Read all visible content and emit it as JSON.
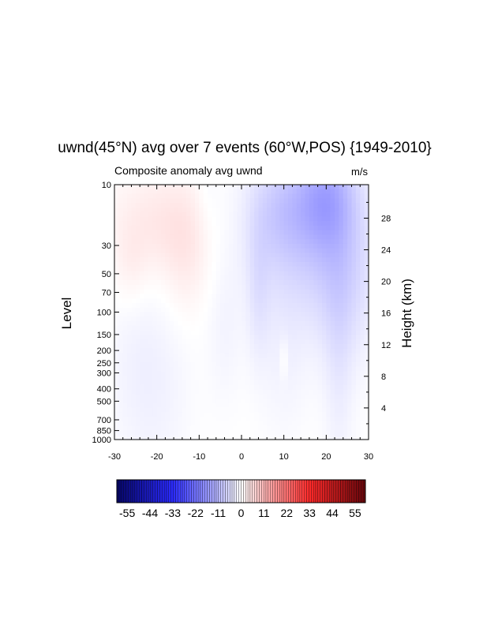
{
  "chart_data": {
    "type": "heatmap",
    "title": "uwnd(45°N) avg over 7 events (60°W,POS) {1949-2010}",
    "subtitle": "Composite anomaly avg uwnd",
    "units": "m/s",
    "ylabel_left": "Level",
    "ylabel_right": "Height (km)",
    "xlim": [
      -30,
      30
    ],
    "x_ticks": [
      -30,
      -20,
      -10,
      0,
      10,
      20,
      30
    ],
    "y_axis_scale": "log-pressure",
    "ylim_hpa": [
      1000,
      10
    ],
    "y_ticks_left": [
      10,
      30,
      50,
      70,
      100,
      150,
      200,
      250,
      300,
      400,
      500,
      700,
      850,
      1000
    ],
    "y_ticks_right_km": [
      4,
      8,
      12,
      16,
      20,
      24,
      28
    ],
    "colorbar_labels": [
      -55,
      -44,
      -33,
      -22,
      -11,
      0,
      11,
      22,
      33,
      44,
      55
    ],
    "colorbar_range": [
      -60,
      60
    ],
    "colormap": {
      "negative": "#050566",
      "mid_negative": "#2a2aff",
      "zero": "#ffffff",
      "mid_positive": "#ff2a2a",
      "positive": "#66050a"
    },
    "features": [
      {
        "x_center": -20,
        "level_center_hpa": 20,
        "x_halfwidth": 8,
        "level_halfwidth_log": 0.3,
        "value": 3.5
      },
      {
        "x_center": -13,
        "level_center_hpa": 35,
        "x_halfwidth": 4,
        "level_halfwidth_log": 0.35,
        "value": 2.5
      },
      {
        "x_center": -26,
        "level_center_hpa": 45,
        "x_halfwidth": 3,
        "level_halfwidth_log": 0.25,
        "value": 2.0
      },
      {
        "x_center": 20,
        "level_center_hpa": 12,
        "x_halfwidth": 5,
        "level_halfwidth_log": 0.3,
        "value": -10.0
      },
      {
        "x_center": 15,
        "level_center_hpa": 25,
        "x_halfwidth": 10,
        "level_halfwidth_log": 0.45,
        "value": -5.5
      },
      {
        "x_center": 9,
        "level_center_hpa": 15,
        "x_halfwidth": 5,
        "level_halfwidth_log": 0.3,
        "value": -4.5
      },
      {
        "x_center": 24,
        "level_center_hpa": 60,
        "x_halfwidth": 6,
        "level_halfwidth_log": 0.45,
        "value": -4.5
      },
      {
        "x_center": 23,
        "level_center_hpa": 250,
        "x_halfwidth": 2.5,
        "level_halfwidth_log": 0.7,
        "value": -2.5
      },
      {
        "x_center": 4,
        "level_center_hpa": 70,
        "x_halfwidth": 2,
        "level_halfwidth_log": 0.4,
        "value": -3.0
      },
      {
        "x_center": 10,
        "level_center_hpa": 200,
        "x_halfwidth": 4,
        "level_halfwidth_log": 0.5,
        "value": -1.8
      },
      {
        "x_center": -25,
        "level_center_hpa": 250,
        "x_halfwidth": 5,
        "level_halfwidth_log": 0.6,
        "value": -1.8
      },
      {
        "x_center": -18,
        "level_center_hpa": 400,
        "x_halfwidth": 5,
        "level_halfwidth_log": 0.5,
        "value": -1.4
      },
      {
        "x_center": -4,
        "level_center_hpa": 150,
        "x_halfwidth": 3,
        "level_halfwidth_log": 0.4,
        "value": -1.5
      },
      {
        "x_center": -8,
        "level_center_hpa": 12,
        "x_halfwidth": 2,
        "level_halfwidth_log": 0.3,
        "value": -1.2
      },
      {
        "x_center": 10,
        "level_center_hpa": 230,
        "x_halfwidth": 0.6,
        "level_halfwidth_log": 0.12,
        "value": 2.5
      }
    ]
  }
}
